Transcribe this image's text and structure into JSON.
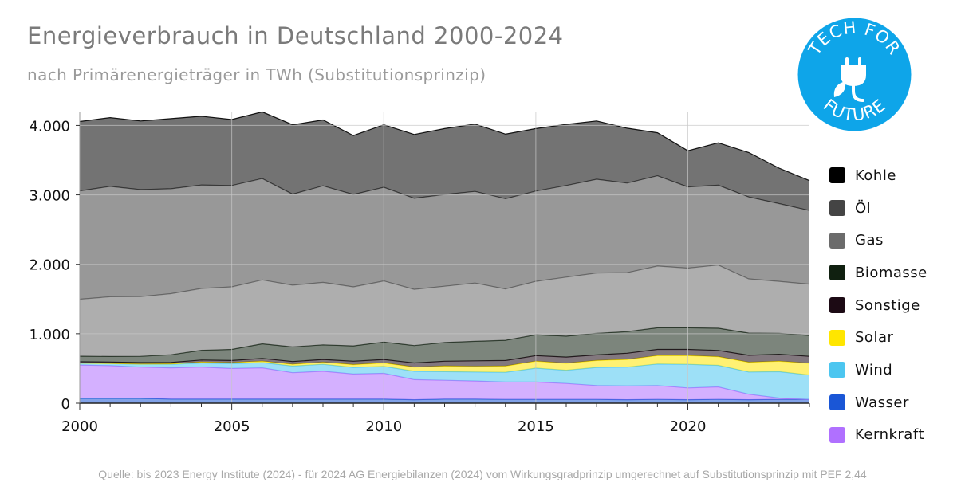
{
  "header": {
    "title": "Energieverbrauch in Deutschland 2000-2024",
    "subtitle": "nach Primärenergieträger in TWh (Substitutionsprinzip)"
  },
  "logo": {
    "line1": "TECH FOR",
    "line2": "FUTURE",
    "color": "#0ea5e9",
    "icon": "plug-leaf-icon"
  },
  "source": "Quelle: bis 2023 Energy Institute (2024) - für 2024 AG Energiebilanzen (2024) vom Wirkungsgradprinzip umgerechnet auf Substitutionsprinzip mit PEF 2,44",
  "chart_data": {
    "type": "area",
    "stacked": true,
    "title": "Energieverbrauch in Deutschland 2000-2024",
    "subtitle": "nach Primärenergieträger in TWh (Substitutionsprinzip)",
    "x": [
      2000,
      2001,
      2002,
      2003,
      2004,
      2005,
      2006,
      2007,
      2008,
      2009,
      2010,
      2011,
      2012,
      2013,
      2014,
      2015,
      2016,
      2017,
      2018,
      2019,
      2020,
      2021,
      2022,
      2023,
      2024
    ],
    "xticks": [
      "2000",
      "2005",
      "2010",
      "2015",
      "2020"
    ],
    "yticks": [
      "0",
      "1.000",
      "2.000",
      "3.000",
      "4.000"
    ],
    "ylim": [
      0,
      4200
    ],
    "grid": true,
    "legend_position": "right",
    "stack_order": [
      "Wasser",
      "Kernkraft",
      "Wind",
      "Solar",
      "Sonstige",
      "Biomasse",
      "Gas",
      "Öl",
      "Kohle"
    ],
    "series": [
      {
        "name": "Kohle",
        "color": "#000000",
        "values": [
          1000,
          990,
          990,
          1010,
          990,
          950,
          960,
          1000,
          950,
          850,
          900,
          920,
          950,
          970,
          930,
          900,
          880,
          840,
          790,
          620,
          520,
          610,
          640,
          510,
          430
        ]
      },
      {
        "name": "Öl",
        "color": "#444444",
        "values": [
          1560,
          1590,
          1540,
          1510,
          1490,
          1460,
          1460,
          1310,
          1390,
          1330,
          1350,
          1310,
          1320,
          1320,
          1300,
          1300,
          1320,
          1350,
          1290,
          1300,
          1170,
          1150,
          1180,
          1120,
          1060
        ]
      },
      {
        "name": "Gas",
        "color": "#6b6b6b",
        "values": [
          820,
          860,
          860,
          880,
          890,
          900,
          920,
          890,
          900,
          850,
          880,
          810,
          810,
          840,
          740,
          770,
          850,
          870,
          850,
          890,
          860,
          910,
          780,
          750,
          740
        ]
      },
      {
        "name": "Biomasse",
        "color": "#102010",
        "values": [
          80,
          80,
          90,
          110,
          140,
          160,
          210,
          210,
          210,
          220,
          250,
          250,
          270,
          280,
          290,
          300,
          300,
          310,
          310,
          310,
          310,
          320,
          320,
          300,
          300
        ]
      },
      {
        "name": "Sonstige",
        "color": "#1c0a14",
        "values": [
          20,
          20,
          20,
          20,
          30,
          30,
          40,
          40,
          40,
          50,
          50,
          60,
          70,
          80,
          80,
          80,
          90,
          80,
          90,
          90,
          90,
          90,
          100,
          100,
          100
        ]
      },
      {
        "name": "Solar",
        "color": "#ffe600",
        "values": [
          2,
          3,
          5,
          8,
          12,
          15,
          20,
          25,
          30,
          40,
          50,
          60,
          80,
          80,
          90,
          100,
          100,
          100,
          110,
          120,
          125,
          125,
          140,
          150,
          170
        ]
      },
      {
        "name": "Wind",
        "color": "#4cc6f0",
        "values": [
          25,
          30,
          40,
          50,
          60,
          70,
          75,
          95,
          100,
          95,
          100,
          120,
          125,
          130,
          140,
          200,
          190,
          260,
          270,
          310,
          340,
          310,
          320,
          380,
          350
        ]
      },
      {
        "name": "Wasser",
        "color": "#1a56d6",
        "values": [
          70,
          70,
          70,
          60,
          60,
          60,
          60,
          60,
          60,
          60,
          60,
          50,
          60,
          60,
          55,
          55,
          55,
          55,
          50,
          55,
          50,
          55,
          50,
          55,
          55
        ]
      },
      {
        "name": "Kernkraft",
        "color": "#b070ff",
        "values": [
          480,
          470,
          450,
          450,
          460,
          440,
          450,
          380,
          400,
          360,
          370,
          290,
          270,
          260,
          250,
          250,
          230,
          200,
          200,
          200,
          170,
          180,
          80,
          20,
          0
        ]
      }
    ]
  }
}
